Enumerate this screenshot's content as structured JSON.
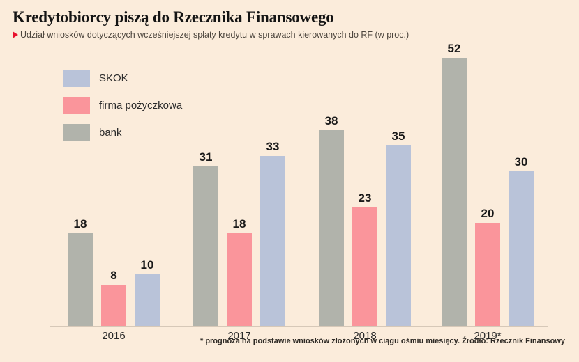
{
  "page": {
    "title": "Kredytobiorcy piszą do Rzecznika Finansowego",
    "subtitle": "Udział wniosków dotyczących wcześniejszej spłaty kredytu w sprawach kierowanych do RF (w proc.)",
    "footnote": "* prognoza na podstawie wniosków złożonych w ciągu ośmiu miesięcy. Źródło: Rzecznik Finansowy"
  },
  "chart_data": {
    "type": "bar",
    "title": "Kredytobiorcy piszą do Rzecznika Finansowego",
    "subtitle": "Udział wniosków dotyczących wcześniejszej spłaty kredytu w sprawach kierowanych do RF (w proc.)",
    "categories": [
      "2016",
      "2017",
      "2018",
      "2019*"
    ],
    "series": [
      {
        "name": "bank",
        "color": "#b1b3ab",
        "values": [
          18,
          31,
          38,
          52
        ]
      },
      {
        "name": "firma pożyczkowa",
        "color": "#fa959b",
        "values": [
          8,
          18,
          23,
          20
        ]
      },
      {
        "name": "SKOK",
        "color": "#b9c3d9",
        "values": [
          10,
          33,
          35,
          30
        ]
      }
    ],
    "legend_order": [
      "SKOK",
      "firma pożyczkowa",
      "bank"
    ],
    "legend_position": "top-left",
    "ylim": [
      0,
      55
    ],
    "grid": false,
    "value_labels": true,
    "xlabel": "",
    "ylabel": "",
    "unit": "proc.",
    "colors": {
      "background": "#fbecdb",
      "axis": "#d6c8b8",
      "accent_red": "#e8112d",
      "text": "#141414"
    },
    "footnote": "* prognoza na podstawie wniosków złożonych w ciągu ośmiu miesięcy. Źródło: Rzecznik Finansowy"
  }
}
